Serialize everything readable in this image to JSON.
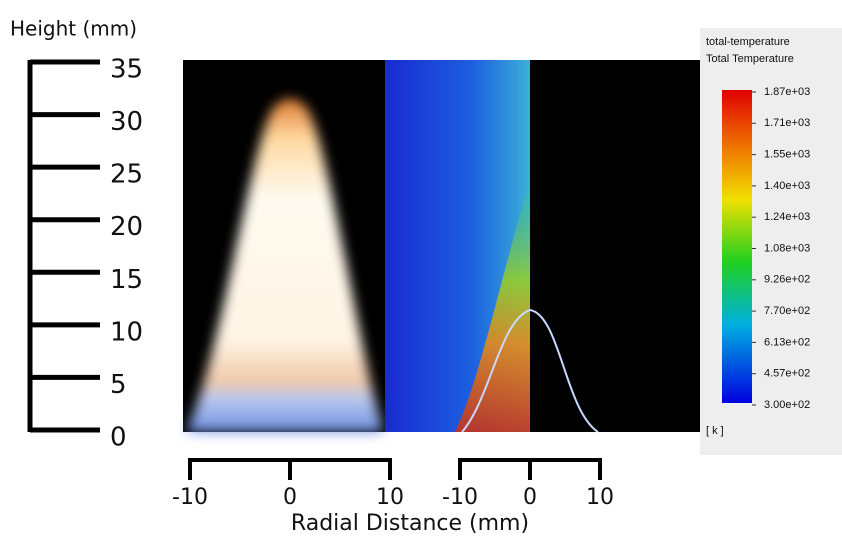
{
  "figure": {
    "y_axis": {
      "title": "Height (mm)",
      "ticks": [
        "35",
        "30",
        "25",
        "20",
        "15",
        "10",
        "5",
        "0"
      ]
    },
    "x_axes": [
      {
        "ticks": [
          "-10",
          "0",
          "10"
        ]
      },
      {
        "ticks": [
          "-10",
          "0",
          "10"
        ]
      }
    ],
    "x_title": "Radial Distance (mm)",
    "colorbar": {
      "title": "total-temperature",
      "subtitle": "Total Temperature",
      "labels": [
        "1.87e+03",
        "1.71e+03",
        "1.55e+03",
        "1.40e+03",
        "1.24e+03",
        "1.08e+03",
        "9.26e+02",
        "7.70e+02",
        "6.13e+02",
        "4.57e+02",
        "3.00e+02"
      ],
      "unit": "[ k ]"
    }
  }
}
